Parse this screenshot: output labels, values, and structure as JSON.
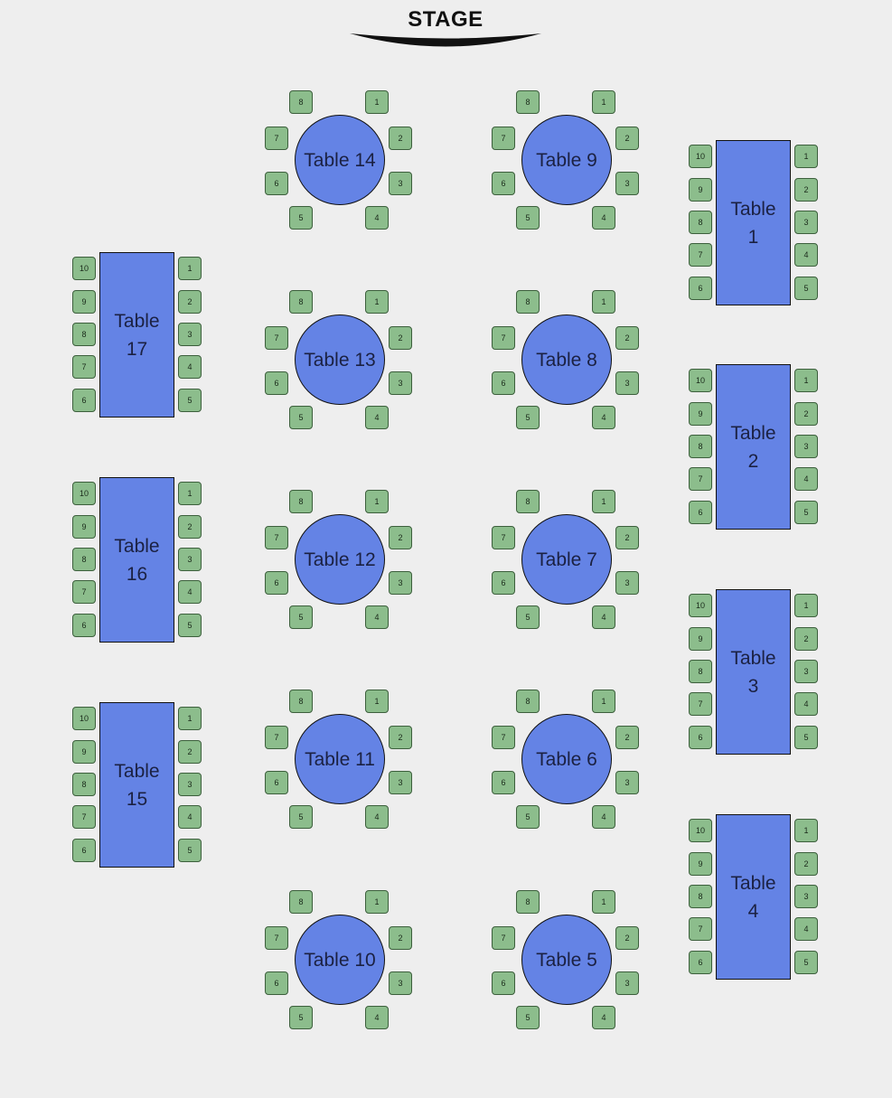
{
  "stage": {
    "label": "STAGE"
  },
  "colors": {
    "background": "#eeeeee",
    "table_fill": "#6483e5",
    "seat_fill": "#8cbd8c"
  },
  "round_seat_labels": [
    "1",
    "2",
    "3",
    "4",
    "5",
    "6",
    "7",
    "8"
  ],
  "rect_seat_labels": [
    "1",
    "2",
    "3",
    "4",
    "5",
    "6",
    "7",
    "8",
    "9",
    "10"
  ],
  "round_tables": [
    {
      "id": "14",
      "label": "Table 14"
    },
    {
      "id": "9",
      "label": "Table 9"
    },
    {
      "id": "13",
      "label": "Table 13"
    },
    {
      "id": "8",
      "label": "Table 8"
    },
    {
      "id": "12",
      "label": "Table 12"
    },
    {
      "id": "7",
      "label": "Table 7"
    },
    {
      "id": "11",
      "label": "Table 11"
    },
    {
      "id": "6",
      "label": "Table 6"
    },
    {
      "id": "10",
      "label": "Table 10"
    },
    {
      "id": "5",
      "label": "Table 5"
    }
  ],
  "rect_tables": [
    {
      "id": "17",
      "label": "Table 17"
    },
    {
      "id": "16",
      "label": "Table 16"
    },
    {
      "id": "15",
      "label": "Table 15"
    },
    {
      "id": "1",
      "label": "Table 1"
    },
    {
      "id": "2",
      "label": "Table 2"
    },
    {
      "id": "3",
      "label": "Table 3"
    },
    {
      "id": "4",
      "label": "Table 4"
    }
  ]
}
